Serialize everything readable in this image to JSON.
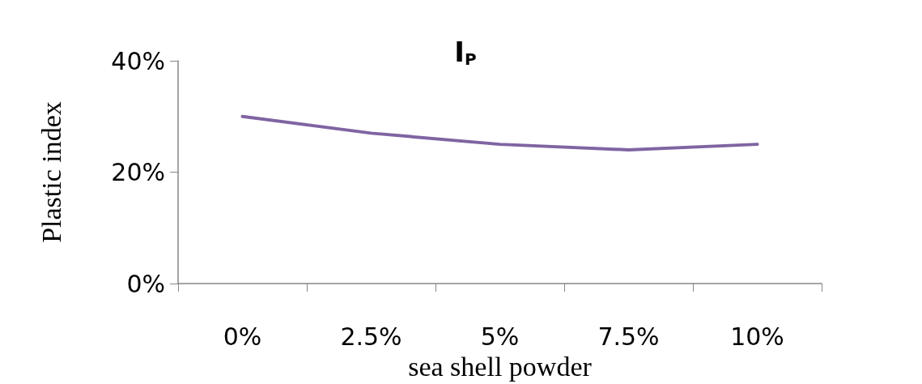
{
  "chart_data": {
    "type": "line",
    "title": "I$_{P}$",
    "xlabel": "sea shell powder",
    "ylabel": "Plastic index",
    "categories": [
      "0%",
      "2.5%",
      "5%",
      "7.5%",
      "10%"
    ],
    "series": [
      {
        "color": "#8064a2",
        "values": [
          30,
          27,
          25,
          24,
          25
        ]
      }
    ],
    "ylim": [
      0,
      40
    ],
    "yticks": [
      {
        "value": 0,
        "label": "0%"
      },
      {
        "value": 20,
        "label": "20%"
      },
      {
        "value": 40,
        "label": "40%"
      }
    ],
    "grid": false,
    "marker": "none",
    "line_style": "solid"
  }
}
